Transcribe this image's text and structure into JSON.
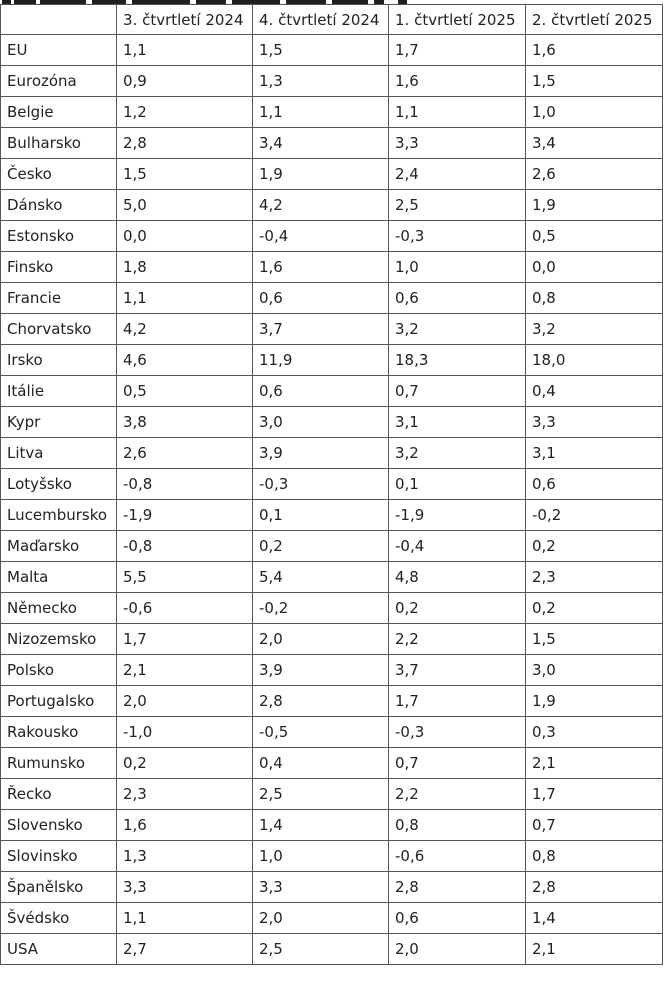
{
  "table": {
    "headers": [
      "",
      "3. čtvrtletí 2024",
      "4. čtvrtletí 2024",
      "1. čtvrtletí 2025",
      "2. čtvrtletí 2025"
    ],
    "rows": [
      [
        "EU",
        "1,1",
        "1,5",
        "1,7",
        "1,6"
      ],
      [
        "Eurozóna",
        "0,9",
        "1,3",
        "1,6",
        "1,5"
      ],
      [
        "Belgie",
        "1,2",
        "1,1",
        "1,1",
        "1,0"
      ],
      [
        "Bulharsko",
        "2,8",
        "3,4",
        "3,3",
        "3,4"
      ],
      [
        "Česko",
        "1,5",
        "1,9",
        "2,4",
        "2,6"
      ],
      [
        "Dánsko",
        "5,0",
        "4,2",
        "2,5",
        "1,9"
      ],
      [
        "Estonsko",
        "0,0",
        "-0,4",
        "-0,3",
        "0,5"
      ],
      [
        "Finsko",
        "1,8",
        "1,6",
        "1,0",
        "0,0"
      ],
      [
        "Francie",
        "1,1",
        "0,6",
        "0,6",
        "0,8"
      ],
      [
        "Chorvatsko",
        "4,2",
        "3,7",
        "3,2",
        "3,2"
      ],
      [
        "Irsko",
        "4,6",
        "11,9",
        "18,3",
        "18,0"
      ],
      [
        "Itálie",
        "0,5",
        "0,6",
        "0,7",
        "0,4"
      ],
      [
        "Kypr",
        "3,8",
        "3,0",
        "3,1",
        "3,3"
      ],
      [
        "Litva",
        "2,6",
        "3,9",
        "3,2",
        "3,1"
      ],
      [
        "Lotyšsko",
        "-0,8",
        "-0,3",
        "0,1",
        "0,6"
      ],
      [
        "Lucembursko",
        "-1,9",
        "0,1",
        "-1,9",
        "-0,2"
      ],
      [
        "Maďarsko",
        "-0,8",
        "0,2",
        "-0,4",
        "0,2"
      ],
      [
        "Malta",
        "5,5",
        "5,4",
        "4,8",
        "2,3"
      ],
      [
        "Německo",
        "-0,6",
        "-0,2",
        "0,2",
        "0,2"
      ],
      [
        "Nizozemsko",
        "1,7",
        "2,0",
        "2,2",
        "1,5"
      ],
      [
        "Polsko",
        "2,1",
        "3,9",
        "3,7",
        "3,0"
      ],
      [
        "Portugalsko",
        "2,0",
        "2,8",
        "1,7",
        "1,9"
      ],
      [
        "Rakousko",
        "-1,0",
        "-0,5",
        "-0,3",
        "0,3"
      ],
      [
        "Rumunsko",
        "0,2",
        "0,4",
        "0,7",
        "2,1"
      ],
      [
        "Řecko",
        "2,3",
        "2,5",
        "2,2",
        "1,7"
      ],
      [
        "Slovensko",
        "1,6",
        "1,4",
        "0,8",
        "0,7"
      ],
      [
        "Slovinsko",
        "1,3",
        "1,0",
        "-0,6",
        "0,8"
      ],
      [
        "Španělsko",
        "3,3",
        "3,3",
        "2,8",
        "2,8"
      ],
      [
        "Švédsko",
        "1,1",
        "2,0",
        "0,6",
        "1,4"
      ],
      [
        "USA",
        "2,7",
        "2,5",
        "2,0",
        "2,1"
      ]
    ]
  }
}
